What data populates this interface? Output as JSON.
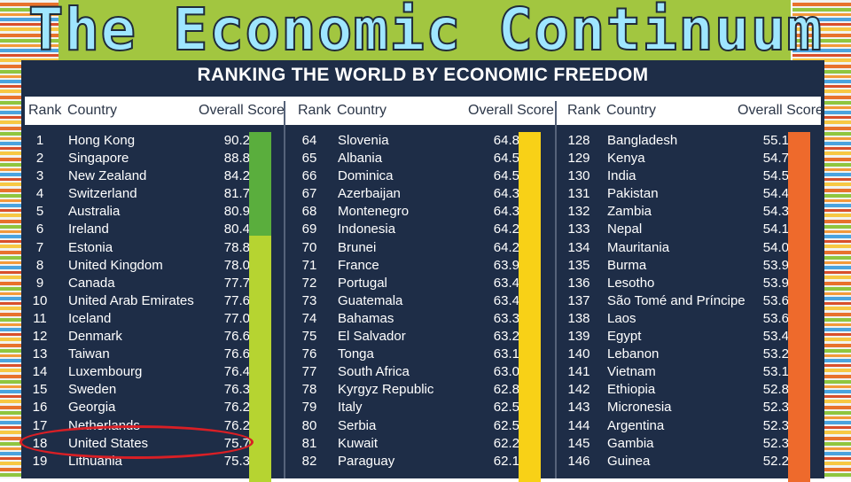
{
  "slide": {
    "title": "The Economic Continuum"
  },
  "panel": {
    "heading": "RANKING THE WORLD BY ECONOMIC FREEDOM",
    "headers": {
      "rank": "Rank",
      "country": "Country",
      "score": "Overall Score"
    },
    "columns": [
      {
        "rows": [
          {
            "rank": "1",
            "country": "Hong Kong",
            "score": "90.2"
          },
          {
            "rank": "2",
            "country": "Singapore",
            "score": "88.8"
          },
          {
            "rank": "3",
            "country": "New Zealand",
            "score": "84.2"
          },
          {
            "rank": "4",
            "country": "Switzerland",
            "score": "81.7"
          },
          {
            "rank": "5",
            "country": "Australia",
            "score": "80.9"
          },
          {
            "rank": "6",
            "country": "Ireland",
            "score": "80.4"
          },
          {
            "rank": "7",
            "country": "Estonia",
            "score": "78.8"
          },
          {
            "rank": "8",
            "country": "United Kingdom",
            "score": "78.0"
          },
          {
            "rank": "9",
            "country": "Canada",
            "score": "77.7"
          },
          {
            "rank": "10",
            "country": "United Arab Emirates",
            "score": "77.6"
          },
          {
            "rank": "11",
            "country": "Iceland",
            "score": "77.0"
          },
          {
            "rank": "12",
            "country": "Denmark",
            "score": "76.6"
          },
          {
            "rank": "13",
            "country": "Taiwan",
            "score": "76.6"
          },
          {
            "rank": "14",
            "country": "Luxembourg",
            "score": "76.4"
          },
          {
            "rank": "15",
            "country": "Sweden",
            "score": "76.3"
          },
          {
            "rank": "16",
            "country": "Georgia",
            "score": "76.2"
          },
          {
            "rank": "17",
            "country": "Netherlands",
            "score": "76.2"
          },
          {
            "rank": "18",
            "country": "United States",
            "score": "75.7"
          },
          {
            "rank": "19",
            "country": "Lithuania",
            "score": "75.3"
          }
        ]
      },
      {
        "rows": [
          {
            "rank": "64",
            "country": "Slovenia",
            "score": "64.8"
          },
          {
            "rank": "65",
            "country": "Albania",
            "score": "64.5"
          },
          {
            "rank": "66",
            "country": "Dominica",
            "score": "64.5"
          },
          {
            "rank": "67",
            "country": "Azerbaijan",
            "score": "64.3"
          },
          {
            "rank": "68",
            "country": "Montenegro",
            "score": "64.3"
          },
          {
            "rank": "69",
            "country": "Indonesia",
            "score": "64.2"
          },
          {
            "rank": "70",
            "country": "Brunei",
            "score": "64.2"
          },
          {
            "rank": "71",
            "country": "France",
            "score": "63.9"
          },
          {
            "rank": "72",
            "country": "Portugal",
            "score": "63.4"
          },
          {
            "rank": "73",
            "country": "Guatemala",
            "score": "63.4"
          },
          {
            "rank": "74",
            "country": "Bahamas",
            "score": "63.3"
          },
          {
            "rank": "75",
            "country": "El Salvador",
            "score": "63.2"
          },
          {
            "rank": "76",
            "country": "Tonga",
            "score": "63.1"
          },
          {
            "rank": "77",
            "country": "South Africa",
            "score": "63.0"
          },
          {
            "rank": "78",
            "country": "Kyrgyz Republic",
            "score": "62.8"
          },
          {
            "rank": "79",
            "country": "Italy",
            "score": "62.5"
          },
          {
            "rank": "80",
            "country": "Serbia",
            "score": "62.5"
          },
          {
            "rank": "81",
            "country": "Kuwait",
            "score": "62.2"
          },
          {
            "rank": "82",
            "country": "Paraguay",
            "score": "62.1"
          }
        ]
      },
      {
        "rows": [
          {
            "rank": "128",
            "country": "Bangladesh",
            "score": "55.1"
          },
          {
            "rank": "129",
            "country": "Kenya",
            "score": "54.7"
          },
          {
            "rank": "130",
            "country": "India",
            "score": "54.5"
          },
          {
            "rank": "131",
            "country": "Pakistan",
            "score": "54.4"
          },
          {
            "rank": "132",
            "country": "Zambia",
            "score": "54.3"
          },
          {
            "rank": "133",
            "country": "Nepal",
            "score": "54.1"
          },
          {
            "rank": "134",
            "country": "Mauritania",
            "score": "54.0"
          },
          {
            "rank": "135",
            "country": "Burma",
            "score": "53.9"
          },
          {
            "rank": "136",
            "country": "Lesotho",
            "score": "53.9"
          },
          {
            "rank": "137",
            "country": "São Tomé and Príncipe",
            "score": "53.6"
          },
          {
            "rank": "138",
            "country": "Laos",
            "score": "53.6"
          },
          {
            "rank": "139",
            "country": "Egypt",
            "score": "53.4"
          },
          {
            "rank": "140",
            "country": "Lebanon",
            "score": "53.2"
          },
          {
            "rank": "141",
            "country": "Vietnam",
            "score": "53.1"
          },
          {
            "rank": "142",
            "country": "Ethiopia",
            "score": "52.8"
          },
          {
            "rank": "143",
            "country": "Micronesia",
            "score": "52.3"
          },
          {
            "rank": "144",
            "country": "Argentina",
            "score": "52.3"
          },
          {
            "rank": "145",
            "country": "Gambia",
            "score": "52.3"
          },
          {
            "rank": "146",
            "country": "Guinea",
            "score": "52.2"
          }
        ]
      }
    ]
  },
  "colors": {
    "band_free": "#5aae3d",
    "band_mostly_free": "#b6d431",
    "band_moderately_free": "#f8d117",
    "band_mostly_unfree": "#ee6a2c",
    "panel_bg": "#1e2d47",
    "highlight": "#d91f25"
  },
  "annotation": {
    "highlighted_rank": "18",
    "highlighted_country": "United States"
  }
}
